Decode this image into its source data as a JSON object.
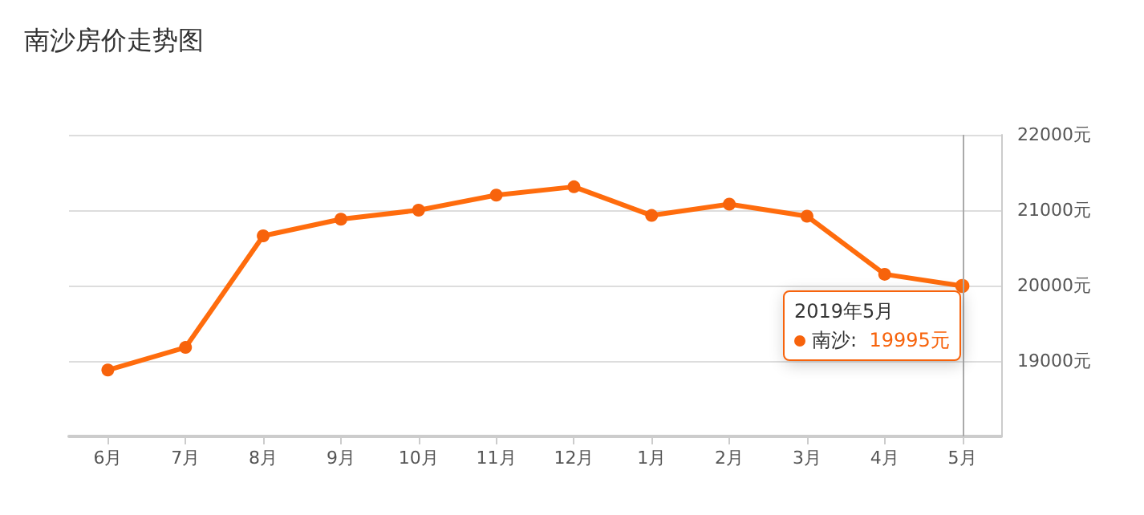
{
  "chart_data": {
    "type": "line",
    "title": "南沙房价走势图",
    "categories": [
      "6月",
      "7月",
      "8月",
      "9月",
      "10月",
      "11月",
      "12月",
      "1月",
      "2月",
      "3月",
      "4月",
      "5月"
    ],
    "series": [
      {
        "name": "南沙:",
        "color": "#f7630c",
        "values": [
          18880,
          19180,
          20660,
          20880,
          21000,
          21200,
          21310,
          20930,
          21080,
          20920,
          20150,
          19995
        ],
        "value_labels": [
          null,
          null,
          null,
          null,
          null,
          null,
          null,
          null,
          null,
          null,
          null,
          "19995元"
        ]
      }
    ],
    "annotations": [
      "2019年5月"
    ],
    "ylim": [
      18000,
      22000
    ],
    "yticks": [
      {
        "value": 18000,
        "label": null
      },
      {
        "value": 19000,
        "label": "19000元"
      },
      {
        "value": 20000,
        "label": "20000元"
      },
      {
        "value": 21000,
        "label": "21000元"
      },
      {
        "value": 22000,
        "label": "22000元"
      }
    ],
    "ref_lines": [
      {
        "axis": "x",
        "value": "5月",
        "color": "#aaaaaa"
      }
    ],
    "grid": "y",
    "marker": "circle",
    "line_style": "solid",
    "legend": "bottom right"
  }
}
